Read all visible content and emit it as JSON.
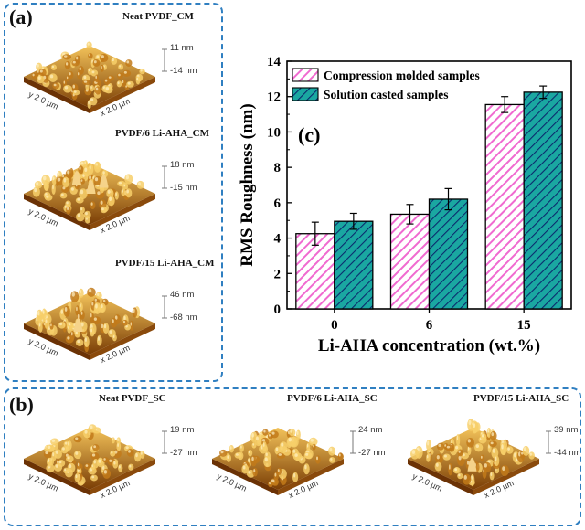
{
  "panels": {
    "a": {
      "label": "(a)"
    },
    "b": {
      "label": "(b)"
    }
  },
  "afm": [
    {
      "title": "Neat PVDF_CM",
      "max": "11 nm",
      "min": "-14 nm",
      "x_label": "x 2.0 µm",
      "y_label": "y 2.0 µm"
    },
    {
      "title": "PVDF/6 Li-AHA_CM",
      "max": "18 nm",
      "min": "-15 nm",
      "x_label": "x 2.0 µm",
      "y_label": "y 2.0 µm"
    },
    {
      "title": "PVDF/15 Li-AHA_CM",
      "max": "46 nm",
      "min": "-68 nm",
      "x_label": "x 2.0 µm",
      "y_label": "y 2.0 µm"
    },
    {
      "title": "Neat PVDF_SC",
      "max": "19 nm",
      "min": "-27 nm",
      "x_label": "x 2.0 µm",
      "y_label": "y 2.0 µm"
    },
    {
      "title": "PVDF/6 Li-AHA_SC",
      "max": "24 nm",
      "min": "-27 nm",
      "x_label": "x 2.0 µm",
      "y_label": "y 2.0 µm"
    },
    {
      "title": "PVDF/15 Li-AHA_SC",
      "max": "39 nm",
      "min": "-44 nm",
      "x_label": "x 2.0 µm",
      "y_label": "y 2.0 µm"
    }
  ],
  "colors": {
    "panel_border": "#2f7fc1",
    "compression": "#f06ad0",
    "solution": "#1aa7a1",
    "afm_light": "#f3c35a",
    "afm_dark": "#7a3d05"
  },
  "chart_data": {
    "type": "bar",
    "panel_label": "(c)",
    "categories": [
      "0",
      "6",
      "15"
    ],
    "xlabel": "Li-AHA concentration (wt.%)",
    "ylabel": "RMS Roughness (nm)",
    "ylim": [
      0,
      14
    ],
    "yticks": [
      0,
      2,
      4,
      6,
      8,
      10,
      12,
      14
    ],
    "legend_position": "top-left",
    "grid": false,
    "series": [
      {
        "name": "Compression molded samples",
        "values": [
          4.25,
          5.35,
          11.55
        ],
        "errors": [
          0.65,
          0.55,
          0.45
        ],
        "color": "#f06ad0",
        "pattern": "hatch"
      },
      {
        "name": "Solution casted samples",
        "values": [
          4.95,
          6.2,
          12.25
        ],
        "errors": [
          0.45,
          0.6,
          0.35
        ],
        "color": "#1aa7a1",
        "pattern": "hatch"
      }
    ]
  }
}
